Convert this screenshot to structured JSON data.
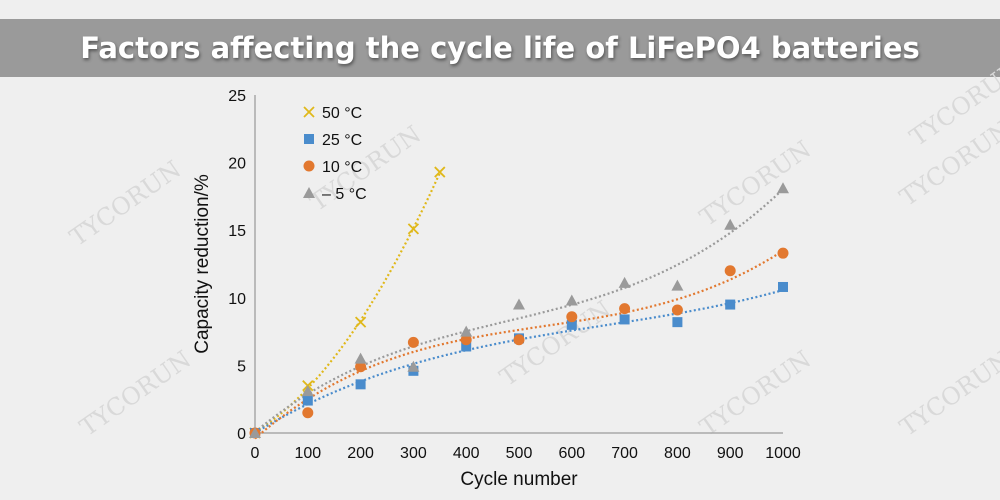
{
  "title": "Factors affecting the cycle life of LiFePO4 batteries",
  "watermark": "TYCORUN",
  "chart_data": {
    "type": "scatter",
    "title": "",
    "xlabel": "Cycle number",
    "ylabel": "Capacity reduction/%",
    "xlim": [
      0,
      1000
    ],
    "ylim": [
      0,
      25
    ],
    "xticks": [
      0,
      100,
      200,
      300,
      400,
      500,
      600,
      700,
      800,
      900,
      1000
    ],
    "yticks": [
      0,
      5,
      10,
      15,
      20,
      25
    ],
    "grid": false,
    "legend_position": "top-left",
    "trendline": "polynomial, dotted",
    "series": [
      {
        "name": "50 °C",
        "marker": "x",
        "color": "#e0b81a",
        "x": [
          0,
          100,
          200,
          300,
          350
        ],
        "y": [
          0,
          3.5,
          8.2,
          15.1,
          19.3
        ]
      },
      {
        "name": "25 °C",
        "marker": "square",
        "color": "#4a8ccc",
        "x": [
          0,
          100,
          200,
          300,
          400,
          500,
          600,
          700,
          800,
          900,
          1000
        ],
        "y": [
          0,
          2.4,
          3.6,
          4.6,
          6.4,
          7.0,
          8.0,
          8.4,
          8.2,
          9.5,
          10.8
        ]
      },
      {
        "name": "10 °C",
        "marker": "circle",
        "color": "#e2782f",
        "x": [
          0,
          100,
          200,
          300,
          400,
          500,
          600,
          700,
          800,
          900,
          1000
        ],
        "y": [
          0,
          1.5,
          4.9,
          6.7,
          6.9,
          6.9,
          8.6,
          9.2,
          9.1,
          12.0,
          13.3
        ]
      },
      {
        "name": "– 5 °C",
        "marker": "triangle",
        "color": "#9a9a9a",
        "x": [
          0,
          100,
          200,
          300,
          400,
          500,
          600,
          700,
          800,
          900,
          1000
        ],
        "y": [
          0,
          3.1,
          5.5,
          4.9,
          7.5,
          9.5,
          9.8,
          11.1,
          10.9,
          15.4,
          18.1
        ]
      }
    ]
  }
}
